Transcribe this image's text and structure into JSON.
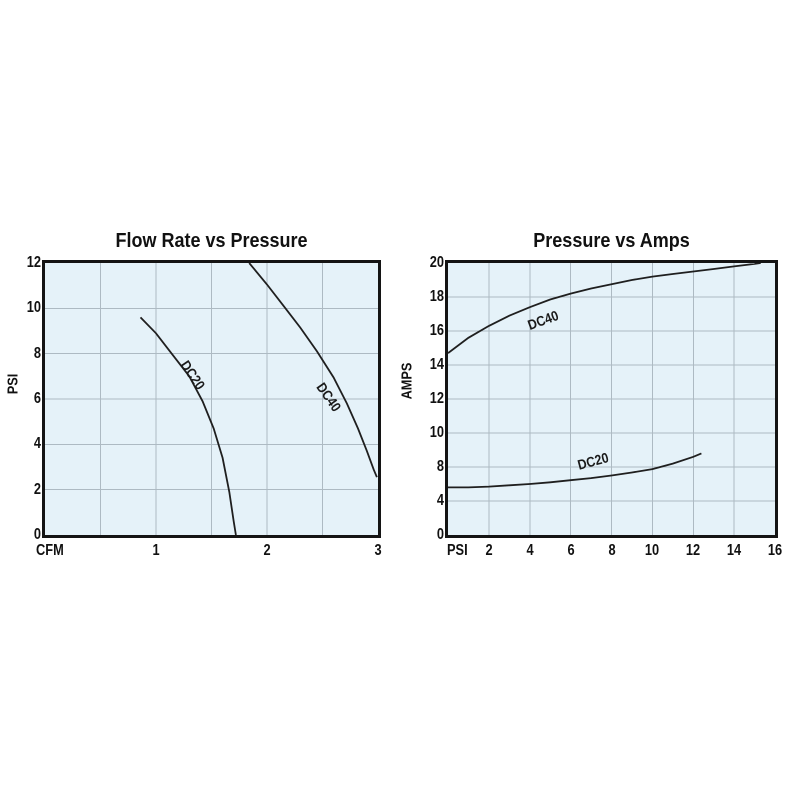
{
  "styles": {
    "page_bg": "#ffffff",
    "plot_bg": "#e5f2f9",
    "grid_color": "#adbac3",
    "frame_color": "#141414",
    "curve_color": "#1f1f1f",
    "text_color": "#111111"
  },
  "chart_data": [
    {
      "type": "line",
      "title": "Flow Rate vs Pressure",
      "xlabel": "CFM",
      "ylabel": "PSI",
      "x_range": [
        0,
        3
      ],
      "y_range": [
        0,
        12
      ],
      "x_ticks": [
        1,
        2,
        3
      ],
      "y_ticks": [
        12,
        10,
        8,
        6,
        4,
        2,
        0
      ],
      "x_grid_step": 0.5,
      "y_grid_step": 2,
      "grid": true,
      "legend": "inline-curve-labels",
      "series": [
        {
          "name": "DC20",
          "points": [
            [
              0.86,
              9.6
            ],
            [
              1.0,
              8.9
            ],
            [
              1.15,
              7.95
            ],
            [
              1.3,
              7.0
            ],
            [
              1.42,
              5.9
            ],
            [
              1.52,
              4.7
            ],
            [
              1.6,
              3.4
            ],
            [
              1.66,
              1.9
            ],
            [
              1.7,
              0.6
            ],
            [
              1.72,
              0
            ]
          ],
          "label": {
            "x": 1.33,
            "y": 7.05,
            "angle": 56
          }
        },
        {
          "name": "DC40",
          "points": [
            [
              1.84,
              12
            ],
            [
              2.0,
              11.05
            ],
            [
              2.15,
              10.1
            ],
            [
              2.3,
              9.15
            ],
            [
              2.45,
              8.1
            ],
            [
              2.6,
              6.95
            ],
            [
              2.72,
              5.8
            ],
            [
              2.82,
              4.7
            ],
            [
              2.9,
              3.7
            ],
            [
              2.96,
              2.9
            ],
            [
              2.99,
              2.55
            ]
          ],
          "label": {
            "x": 2.56,
            "y": 6.1,
            "angle": 55
          }
        }
      ]
    },
    {
      "type": "line",
      "title": "Pressure vs Amps",
      "xlabel": "PSI",
      "ylabel": "AMPS",
      "x_range": [
        0,
        16
      ],
      "x_ticks": [
        2,
        4,
        6,
        8,
        10,
        12,
        14,
        16
      ],
      "y_ticks": [
        20,
        18,
        16,
        14,
        12,
        10,
        8,
        4,
        0
      ],
      "y_scale_stops": [
        0,
        4,
        8,
        10,
        12,
        14,
        16,
        18,
        20
      ],
      "y_axis_nonuniform": true,
      "x_grid_step": 2,
      "grid": true,
      "legend": "inline-curve-labels",
      "series": [
        {
          "name": "DC40",
          "points": [
            [
              0,
              14.7
            ],
            [
              1,
              15.6
            ],
            [
              2,
              16.3
            ],
            [
              3,
              16.9
            ],
            [
              4,
              17.4
            ],
            [
              5,
              17.85
            ],
            [
              6,
              18.2
            ],
            [
              7,
              18.5
            ],
            [
              8,
              18.75
            ],
            [
              9,
              19.0
            ],
            [
              10,
              19.2
            ],
            [
              11,
              19.35
            ],
            [
              12,
              19.5
            ],
            [
              13,
              19.65
            ],
            [
              14,
              19.8
            ],
            [
              15,
              19.95
            ],
            [
              15.3,
              20
            ]
          ],
          "label": {
            "x": 4.65,
            "y": 16.65,
            "angle": -20
          }
        },
        {
          "name": "DC20",
          "points": [
            [
              0,
              5.6
            ],
            [
              1,
              5.6
            ],
            [
              2,
              5.7
            ],
            [
              3,
              5.85
            ],
            [
              4,
              6.0
            ],
            [
              5,
              6.2
            ],
            [
              6,
              6.45
            ],
            [
              7,
              6.7
            ],
            [
              8,
              7.0
            ],
            [
              9,
              7.35
            ],
            [
              10,
              7.75
            ],
            [
              11,
              8.2
            ],
            [
              12,
              8.6
            ],
            [
              12.4,
              8.8
            ]
          ],
          "label": {
            "x": 7.1,
            "y": 8.35,
            "angle": -15
          }
        }
      ]
    }
  ]
}
